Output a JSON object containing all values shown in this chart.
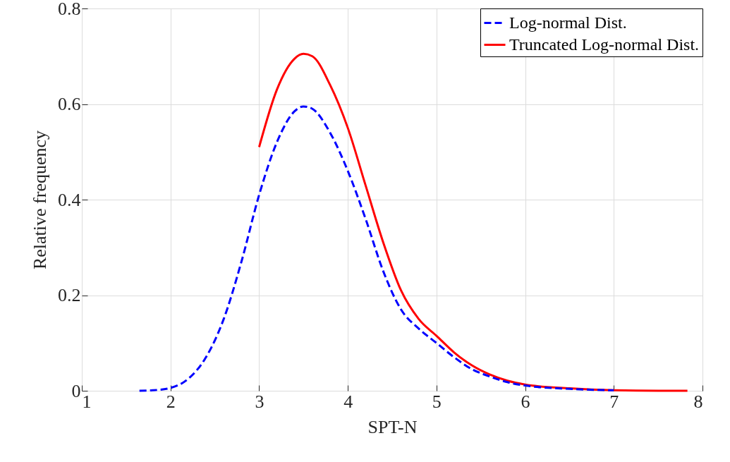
{
  "chart_data": {
    "type": "line",
    "xlabel": "SPT-N",
    "ylabel": "Relative frequency",
    "xlim": [
      1,
      8
    ],
    "xticks": [
      1,
      2,
      3,
      4,
      5,
      6,
      7,
      8
    ],
    "ylim": [
      0,
      0.8
    ],
    "yticks": [
      0,
      0.2,
      0.4,
      0.6,
      0.8
    ],
    "grid": true,
    "legend": "top right",
    "marker": "none",
    "series": [
      {
        "name": "Log-normal Dist.",
        "color": "#0000ff",
        "line_style": "dashed",
        "x": [
          1.65,
          1.8,
          2.0,
          2.2,
          2.4,
          2.6,
          2.8,
          3.0,
          3.2,
          3.4,
          3.5,
          3.6,
          3.8,
          4.0,
          4.2,
          4.4,
          4.6,
          4.8,
          5.0,
          5.2,
          5.4,
          5.6,
          5.8,
          6.0,
          6.5,
          7.0
        ],
        "values": [
          0,
          0.001,
          0.006,
          0.025,
          0.07,
          0.15,
          0.27,
          0.41,
          0.52,
          0.585,
          0.595,
          0.59,
          0.54,
          0.46,
          0.36,
          0.25,
          0.17,
          0.13,
          0.1,
          0.07,
          0.045,
          0.03,
          0.018,
          0.011,
          0.004,
          0.001
        ]
      },
      {
        "name": "Truncated Log-normal Dist.",
        "color": "#ff0000",
        "line_style": "solid",
        "x": [
          3.0,
          3.2,
          3.4,
          3.5,
          3.6,
          3.8,
          4.0,
          4.2,
          4.4,
          4.6,
          4.8,
          5.0,
          5.2,
          5.4,
          5.6,
          5.8,
          6.0,
          6.5,
          7.0,
          7.5,
          7.83
        ],
        "values": [
          0.51,
          0.63,
          0.695,
          0.705,
          0.7,
          0.64,
          0.55,
          0.43,
          0.31,
          0.21,
          0.15,
          0.115,
          0.08,
          0.053,
          0.034,
          0.021,
          0.013,
          0.005,
          0.001,
          0,
          0
        ]
      }
    ]
  }
}
